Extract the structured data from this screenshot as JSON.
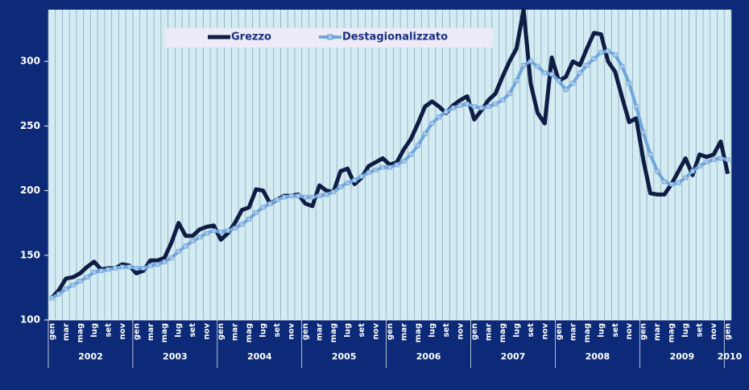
{
  "chart_data": {
    "type": "line",
    "categories": [
      "gen",
      null,
      "mar",
      null,
      "mag",
      null,
      "lug",
      null,
      "set",
      null,
      "nov",
      null,
      "gen",
      null,
      "mar",
      null,
      "mag",
      null,
      "lug",
      null,
      "set",
      null,
      "nov",
      null,
      "gen",
      null,
      "mar",
      null,
      "mag",
      null,
      "lug",
      null,
      "set",
      null,
      "nov",
      null,
      "gen",
      null,
      "mar",
      null,
      "mag",
      null,
      "lug",
      null,
      "set",
      null,
      "nov",
      null,
      "gen",
      null,
      "mar",
      null,
      "mag",
      null,
      "lug",
      null,
      "set",
      null,
      "nov",
      null,
      "gen",
      null,
      "mar",
      null,
      "mag",
      null,
      "lug",
      null,
      "set",
      null,
      "nov",
      null,
      "gen",
      null,
      "mar",
      null,
      "mag",
      null,
      "lug",
      null,
      "set",
      null,
      "nov",
      null,
      "gen",
      null,
      "mar",
      null,
      "mag",
      null,
      "lug",
      null,
      "set",
      null,
      "nov",
      null,
      "gen"
    ],
    "x_groups": [
      "2002",
      "2003",
      "2004",
      "2005",
      "2006",
      "2007",
      "2008",
      "2009",
      "2010"
    ],
    "series": [
      {
        "name": "Grezzo",
        "color": "#0f1d45",
        "values": [
          117,
          123,
          132,
          133,
          136,
          141,
          145,
          139,
          140,
          140,
          143,
          142,
          136,
          138,
          146,
          146,
          148,
          160,
          175,
          165,
          165,
          170,
          172,
          173,
          162,
          167,
          175,
          185,
          187,
          201,
          200,
          190,
          193,
          196,
          196,
          197,
          190,
          188,
          204,
          200,
          199,
          215,
          217,
          205,
          210,
          219,
          222,
          225,
          220,
          222,
          232,
          240,
          252,
          265,
          269,
          265,
          260,
          266,
          270,
          273,
          255,
          262,
          270,
          275,
          288,
          300,
          310,
          340,
          283,
          260,
          252,
          303,
          285,
          288,
          300,
          297,
          310,
          322,
          321,
          300,
          292,
          272,
          253,
          256,
          224,
          198,
          197,
          197,
          205,
          215,
          225,
          212,
          228,
          226,
          228,
          238,
          213
        ]
      },
      {
        "name": "Destagionalizzato",
        "color": "#6fa6dc",
        "values": [
          117,
          120,
          124,
          127,
          130,
          133,
          137,
          138,
          139,
          140,
          141,
          141,
          140,
          140,
          142,
          143,
          145,
          148,
          153,
          157,
          161,
          164,
          167,
          169,
          168,
          169,
          171,
          174,
          178,
          183,
          187,
          190,
          193,
          195,
          196,
          196,
          195,
          195,
          196,
          197,
          199,
          203,
          206,
          208,
          211,
          214,
          216,
          218,
          218,
          220,
          223,
          228,
          235,
          244,
          252,
          257,
          261,
          264,
          266,
          267,
          265,
          264,
          265,
          267,
          270,
          275,
          285,
          297,
          300,
          296,
          291,
          290,
          285,
          278,
          283,
          291,
          297,
          302,
          307,
          308,
          305,
          296,
          283,
          265,
          245,
          228,
          215,
          207,
          205,
          206,
          210,
          215,
          219,
          222,
          224,
          225,
          224
        ]
      }
    ],
    "ylim": [
      100,
      340
    ],
    "yticks": [
      100,
      150,
      200,
      250,
      300
    ]
  }
}
